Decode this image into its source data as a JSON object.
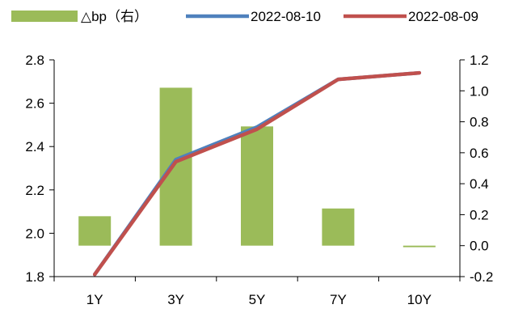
{
  "chart_data": {
    "type": "bar+line",
    "categories": [
      "1Y",
      "3Y",
      "5Y",
      "7Y",
      "10Y"
    ],
    "bar_series": {
      "name": "△bp（右）",
      "axis": "right",
      "values": [
        0.19,
        1.02,
        0.77,
        0.24,
        -0.01
      ],
      "color": "#9bbb59"
    },
    "line_series": [
      {
        "name": "2022-08-10",
        "axis": "left",
        "values": [
          1.81,
          2.34,
          2.49,
          2.71,
          2.74
        ],
        "color": "#4f81bd"
      },
      {
        "name": "2022-08-09",
        "axis": "left",
        "values": [
          1.81,
          2.33,
          2.48,
          2.71,
          2.74
        ],
        "color": "#c0504d"
      }
    ],
    "left_axis": {
      "ylim": [
        1.8,
        2.8
      ],
      "ticks": [
        "1.8",
        "2.0",
        "2.2",
        "2.4",
        "2.6",
        "2.8"
      ]
    },
    "right_axis": {
      "ylim": [
        -0.2,
        1.2
      ],
      "ticks": [
        "-0.2",
        "0.0",
        "0.2",
        "0.4",
        "0.6",
        "0.8",
        "1.0",
        "1.2"
      ]
    },
    "legend_position": "top",
    "grid": false,
    "negative_label_color": "#ff0000"
  }
}
